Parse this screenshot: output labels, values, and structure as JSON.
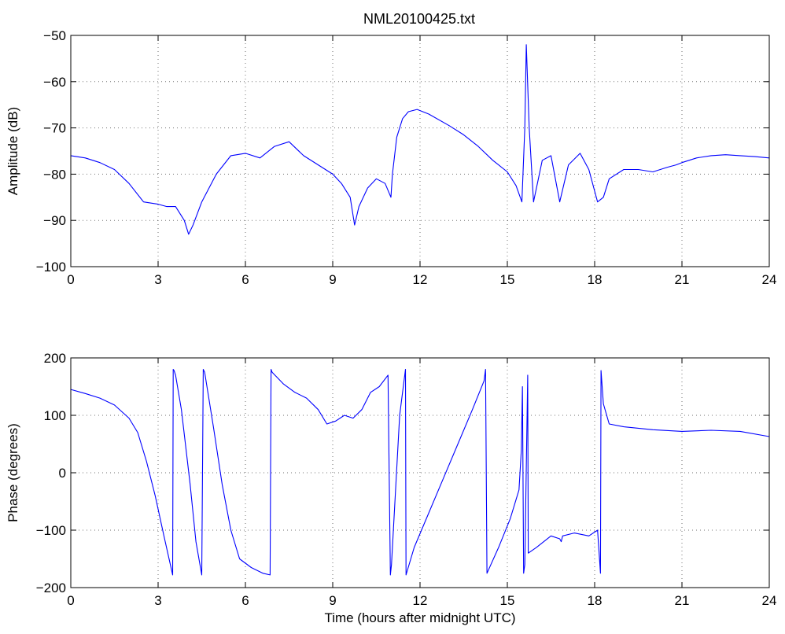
{
  "title": "NML20100425.txt",
  "colors": {
    "series": "#0000ff",
    "axis": "#000000",
    "background": "#ffffff"
  },
  "chart_data": [
    {
      "type": "line",
      "ylabel": "Amplitude (dB)",
      "xlabel": "",
      "xlim": [
        0,
        24
      ],
      "ylim": [
        -100,
        -50
      ],
      "xticks": [
        "0",
        "3",
        "6",
        "9",
        "12",
        "15",
        "18",
        "21",
        "24"
      ],
      "yticks": [
        "-50",
        "-60",
        "-70",
        "-80",
        "-90",
        "-100"
      ],
      "grid": true,
      "series": [
        {
          "x": [
            0,
            0.5,
            1,
            1.5,
            2,
            2.5,
            3,
            3.3,
            3.6,
            3.9,
            4.05,
            4.2,
            4.5,
            5,
            5.5,
            6,
            6.5,
            7,
            7.5,
            8,
            8.5,
            9,
            9.3,
            9.6,
            9.75,
            9.9,
            10.2,
            10.5,
            10.8,
            11,
            11.05,
            11.2,
            11.4,
            11.6,
            11.9,
            12.3,
            13,
            13.5,
            14,
            14.5,
            15,
            15.3,
            15.5,
            15.6,
            15.65,
            15.75,
            15.9,
            16.2,
            16.5,
            16.8,
            17.1,
            17.5,
            17.8,
            18.1,
            18.3,
            18.5,
            19,
            19.5,
            20,
            20.5,
            20.8,
            21,
            21.5,
            22,
            22.5,
            23,
            23.5,
            24
          ],
          "y": [
            -76,
            -76.5,
            -77.5,
            -79,
            -82,
            -86,
            -86.5,
            -87,
            -87,
            -90,
            -93,
            -91,
            -86,
            -80,
            -76,
            -75.5,
            -76.5,
            -74,
            -73,
            -76,
            -78,
            -80,
            -82,
            -85,
            -91,
            -87,
            -83,
            -81,
            -82,
            -85,
            -80,
            -72,
            -68,
            -66.5,
            -66,
            -67,
            -69.5,
            -71.5,
            -74,
            -77,
            -79.5,
            -82.5,
            -86,
            -70,
            -52,
            -70,
            -86,
            -77,
            -76,
            -86,
            -78,
            -75.5,
            -79,
            -86,
            -85,
            -81,
            -79,
            -79,
            -79.5,
            -78.5,
            -78,
            -77.5,
            -76.5,
            -76,
            -75.8,
            -76,
            -76.2,
            -76.5
          ]
        }
      ]
    },
    {
      "type": "line",
      "ylabel": "Phase (degrees)",
      "xlabel": "Time (hours after midnight UTC)",
      "xlim": [
        0,
        24
      ],
      "ylim": [
        -200,
        200
      ],
      "xticks": [
        "0",
        "3",
        "6",
        "9",
        "12",
        "15",
        "18",
        "21",
        "24"
      ],
      "yticks": [
        "200",
        "100",
        "0",
        "-100",
        "-200"
      ],
      "grid": true,
      "series": [
        {
          "x": [
            0,
            0.5,
            1,
            1.5,
            2,
            2.3,
            2.6,
            2.9,
            3.2,
            3.5,
            3.52,
            3.55,
            3.6,
            3.8,
            4.1,
            4.3,
            4.5,
            4.55,
            4.6,
            4.9,
            5.2,
            5.5,
            5.8,
            6.2,
            6.6,
            6.85,
            6.88,
            6.92,
            7.3,
            7.7,
            8.1,
            8.5,
            8.8,
            9.1,
            9.4,
            9.7,
            10,
            10.3,
            10.6,
            10.9,
            10.98,
            11.02,
            11.3,
            11.5,
            11.52,
            11.8,
            12.3,
            12.8,
            13.3,
            13.8,
            14.2,
            14.25,
            14.3,
            14.7,
            15.1,
            15.4,
            15.48,
            15.52,
            15.56,
            15.6,
            15.7,
            15.72,
            16,
            16.5,
            16.8,
            16.85,
            16.9,
            17.3,
            17.8,
            18.1,
            18.2,
            18.22,
            18.3,
            18.5,
            19,
            20,
            21,
            22,
            23,
            24
          ],
          "y": [
            145,
            138,
            130,
            118,
            95,
            70,
            20,
            -40,
            -110,
            -178,
            180,
            178,
            170,
            110,
            -20,
            -120,
            -178,
            180,
            175,
            80,
            -20,
            -100,
            -150,
            -165,
            -175,
            -178,
            180,
            175,
            155,
            140,
            130,
            110,
            85,
            90,
            100,
            95,
            110,
            140,
            150,
            170,
            -178,
            -160,
            100,
            180,
            -178,
            -130,
            -70,
            -10,
            50,
            110,
            160,
            180,
            -175,
            -130,
            -80,
            -30,
            40,
            150,
            -175,
            -160,
            170,
            -140,
            -130,
            -110,
            -115,
            -120,
            -110,
            -105,
            -110,
            -100,
            -175,
            178,
            120,
            85,
            80,
            75,
            72,
            74,
            72,
            63
          ]
        }
      ]
    }
  ]
}
